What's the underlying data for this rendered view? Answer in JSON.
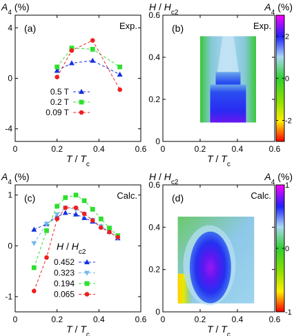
{
  "colors": {
    "s_blue": "#1530e0",
    "s_light": "#74bbee",
    "s_green": "#2ee02e",
    "s_red": "#ee2020"
  },
  "chart_data": [
    {
      "id": "a",
      "type": "line",
      "panel_label": "(a)",
      "corner_label": "Exp.",
      "ylabel": "A₄ (%)",
      "xlabel": "T / Tc",
      "xlim": [
        0,
        0.6
      ],
      "ylim": [
        -5,
        5
      ],
      "xticks": [
        "0",
        "0.2",
        "0.4",
        "0.6"
      ],
      "yticks": [
        "4",
        "0",
        "-4"
      ],
      "series": [
        {
          "name": "0.5 T",
          "marker": "triangle",
          "color": "#1530e0",
          "x": [
            0.2,
            0.27,
            0.37,
            0.5
          ],
          "y": [
            0.6,
            1.2,
            1.4,
            0.3
          ]
        },
        {
          "name": "0.2 T",
          "marker": "square",
          "color": "#2ee02e",
          "x": [
            0.2,
            0.27,
            0.37,
            0.5
          ],
          "y": [
            0.9,
            2.4,
            2.3,
            0.9
          ]
        },
        {
          "name": "0.09 T",
          "marker": "circle",
          "color": "#ee2020",
          "x": [
            0.2,
            0.27,
            0.37,
            0.5
          ],
          "y": [
            0.1,
            2.2,
            3.0,
            -0.9
          ]
        }
      ]
    },
    {
      "id": "b",
      "type": "heatmap",
      "panel_label": "(b)",
      "corner_label": "Exp.",
      "ylabel": "H / Hc2",
      "xlabel": "T / Tc",
      "xlim": [
        0,
        0.6
      ],
      "ylim": [
        0,
        0.6
      ],
      "xticks": [
        "0",
        "0.2",
        "0.4",
        "0.6"
      ],
      "yticks": [
        "0",
        "0.2",
        "0.4",
        "0.6"
      ],
      "data_extent_x": [
        0.2,
        0.5
      ],
      "data_extent_y": [
        0.09,
        0.5
      ],
      "colorbar_title": "A₄ (%)",
      "colorbar_range": [
        -3,
        3
      ],
      "colorbar_ticks": [
        "2",
        "0",
        "-2"
      ]
    },
    {
      "id": "c",
      "type": "line",
      "panel_label": "(c)",
      "corner_label": "Calc.",
      "ylabel": "A₄ (%)",
      "xlabel": "T / Tc",
      "legend_title": "H / Hc2",
      "xlim": [
        0,
        0.6
      ],
      "ylim": [
        -1.3,
        1.2
      ],
      "xticks": [
        "0",
        "0.2",
        "0.4",
        "0.6"
      ],
      "yticks": [
        "1",
        "0",
        "-1"
      ],
      "series": [
        {
          "name": "0.452",
          "marker": "triangle",
          "color": "#1530e0",
          "x": [
            0.09,
            0.15,
            0.2,
            0.24,
            0.29,
            0.33,
            0.37,
            0.41,
            0.45,
            0.49
          ],
          "y": [
            0.32,
            0.43,
            0.57,
            0.65,
            0.62,
            0.55,
            0.48,
            0.38,
            0.28,
            0.15
          ]
        },
        {
          "name": "0.323",
          "marker": "triangle-down",
          "color": "#74bbee",
          "x": [
            0.09,
            0.15,
            0.2,
            0.24,
            0.29,
            0.33,
            0.37,
            0.41,
            0.45,
            0.49
          ],
          "y": [
            0.05,
            0.43,
            0.62,
            0.75,
            0.72,
            0.62,
            0.51,
            0.38,
            0.28,
            0.15
          ]
        },
        {
          "name": "0.194",
          "marker": "square",
          "color": "#2ee02e",
          "x": [
            0.09,
            0.15,
            0.2,
            0.24,
            0.29,
            0.33,
            0.37,
            0.41,
            0.45,
            0.49
          ],
          "y": [
            -0.43,
            0.3,
            0.78,
            0.95,
            1.0,
            0.89,
            0.72,
            0.53,
            0.35,
            0.2
          ]
        },
        {
          "name": "0.065",
          "marker": "circle",
          "color": "#ee2020",
          "x": [
            0.09,
            0.15,
            0.2,
            0.24,
            0.29,
            0.33,
            0.37,
            0.41,
            0.45,
            0.49
          ],
          "y": [
            -0.89,
            -0.23,
            0.53,
            0.75,
            0.75,
            0.63,
            0.5,
            0.36,
            0.27,
            0.17
          ]
        }
      ]
    },
    {
      "id": "d",
      "type": "heatmap",
      "panel_label": "(d)",
      "corner_label": "Calc.",
      "ylabel": "H / Hc2",
      "xlabel": "T / Tc",
      "xlim": [
        0,
        0.6
      ],
      "ylim": [
        0,
        0.6
      ],
      "xticks": [
        "0",
        "0.2",
        "0.4",
        "0.6"
      ],
      "yticks": [
        "0",
        "0.2",
        "0.4",
        "0.6"
      ],
      "data_extent_x": [
        0.08,
        0.49
      ],
      "data_extent_y": [
        0.04,
        0.45
      ],
      "colorbar_title": "A₄ (%)",
      "colorbar_range": [
        -1,
        1
      ],
      "colorbar_ticks": [
        "1",
        "0",
        "-1"
      ]
    }
  ]
}
